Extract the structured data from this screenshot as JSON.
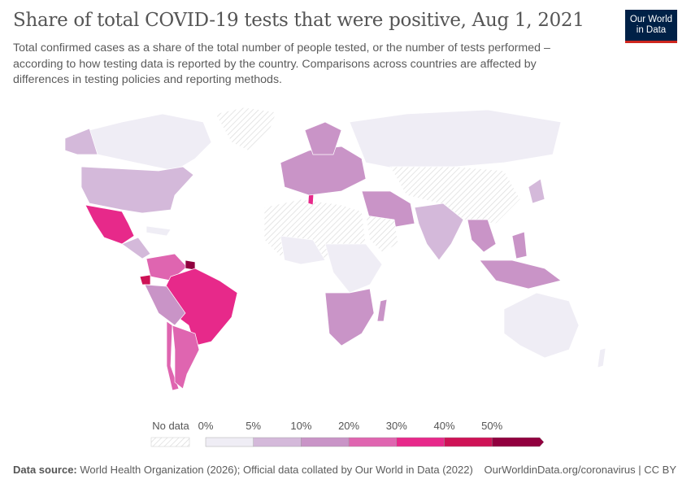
{
  "title": "Share of total COVID-19 tests that were positive, Aug 1, 2021",
  "subtitle": "Total confirmed cases as a share of the total number of people tested, or the number of tests performed – according to how testing data is reported by the country. Comparisons across countries are affected by differences in testing policies and reporting methods.",
  "logo": {
    "line1": "Our World",
    "line2": "in Data"
  },
  "legend": {
    "no_data": "No data",
    "ticks": [
      "0%",
      "5%",
      "10%",
      "20%",
      "30%",
      "40%",
      "50%"
    ],
    "colors": [
      "#efedf5",
      "#d4b9da",
      "#c994c7",
      "#df65b0",
      "#e7298a",
      "#ce1256",
      "#91003f"
    ]
  },
  "map": {
    "regions": [
      {
        "name": "canada",
        "fill": "#efedf5"
      },
      {
        "name": "alaska",
        "fill": "#d4b9da"
      },
      {
        "name": "greenland",
        "fill": "url(#hatch)"
      },
      {
        "name": "usa",
        "fill": "#d4b9da"
      },
      {
        "name": "mexico",
        "fill": "#e7298a"
      },
      {
        "name": "central-america",
        "fill": "#d4b9da"
      },
      {
        "name": "caribbean",
        "fill": "#efedf5"
      },
      {
        "name": "colombia-venezuela",
        "fill": "#df65b0"
      },
      {
        "name": "suriname",
        "fill": "#91003f"
      },
      {
        "name": "ecuador",
        "fill": "#ce1256"
      },
      {
        "name": "brazil",
        "fill": "#e7298a"
      },
      {
        "name": "peru-bolivia",
        "fill": "#c994c7"
      },
      {
        "name": "chile",
        "fill": "#df65b0"
      },
      {
        "name": "argentina",
        "fill": "#df65b0"
      },
      {
        "name": "africa-north",
        "fill": "url(#hatch)"
      },
      {
        "name": "africa-west",
        "fill": "#efedf5"
      },
      {
        "name": "africa-central",
        "fill": "#efedf5"
      },
      {
        "name": "africa-south",
        "fill": "#c994c7"
      },
      {
        "name": "madagascar",
        "fill": "#c994c7"
      },
      {
        "name": "tunisia",
        "fill": "#e7298a"
      },
      {
        "name": "europe",
        "fill": "#c994c7"
      },
      {
        "name": "scandinavia",
        "fill": "#c994c7"
      },
      {
        "name": "russia",
        "fill": "#efedf5"
      },
      {
        "name": "kazakhstan-china",
        "fill": "url(#hatch)"
      },
      {
        "name": "middle-east",
        "fill": "#c994c7"
      },
      {
        "name": "arabia",
        "fill": "url(#hatch)"
      },
      {
        "name": "india",
        "fill": "#d4b9da"
      },
      {
        "name": "southeast-asia",
        "fill": "#c994c7"
      },
      {
        "name": "japan-korea",
        "fill": "#d4b9da"
      },
      {
        "name": "philippines",
        "fill": "#c994c7"
      },
      {
        "name": "indonesia",
        "fill": "#c994c7"
      },
      {
        "name": "australia",
        "fill": "#efedf5"
      },
      {
        "name": "new-zealand",
        "fill": "#efedf5"
      }
    ]
  },
  "footer": {
    "source_label": "Data source:",
    "source_text": " World Health Organization (2026); Official data collated by Our World in Data (2022)",
    "right": "OurWorldinData.org/coronavirus | CC BY"
  }
}
